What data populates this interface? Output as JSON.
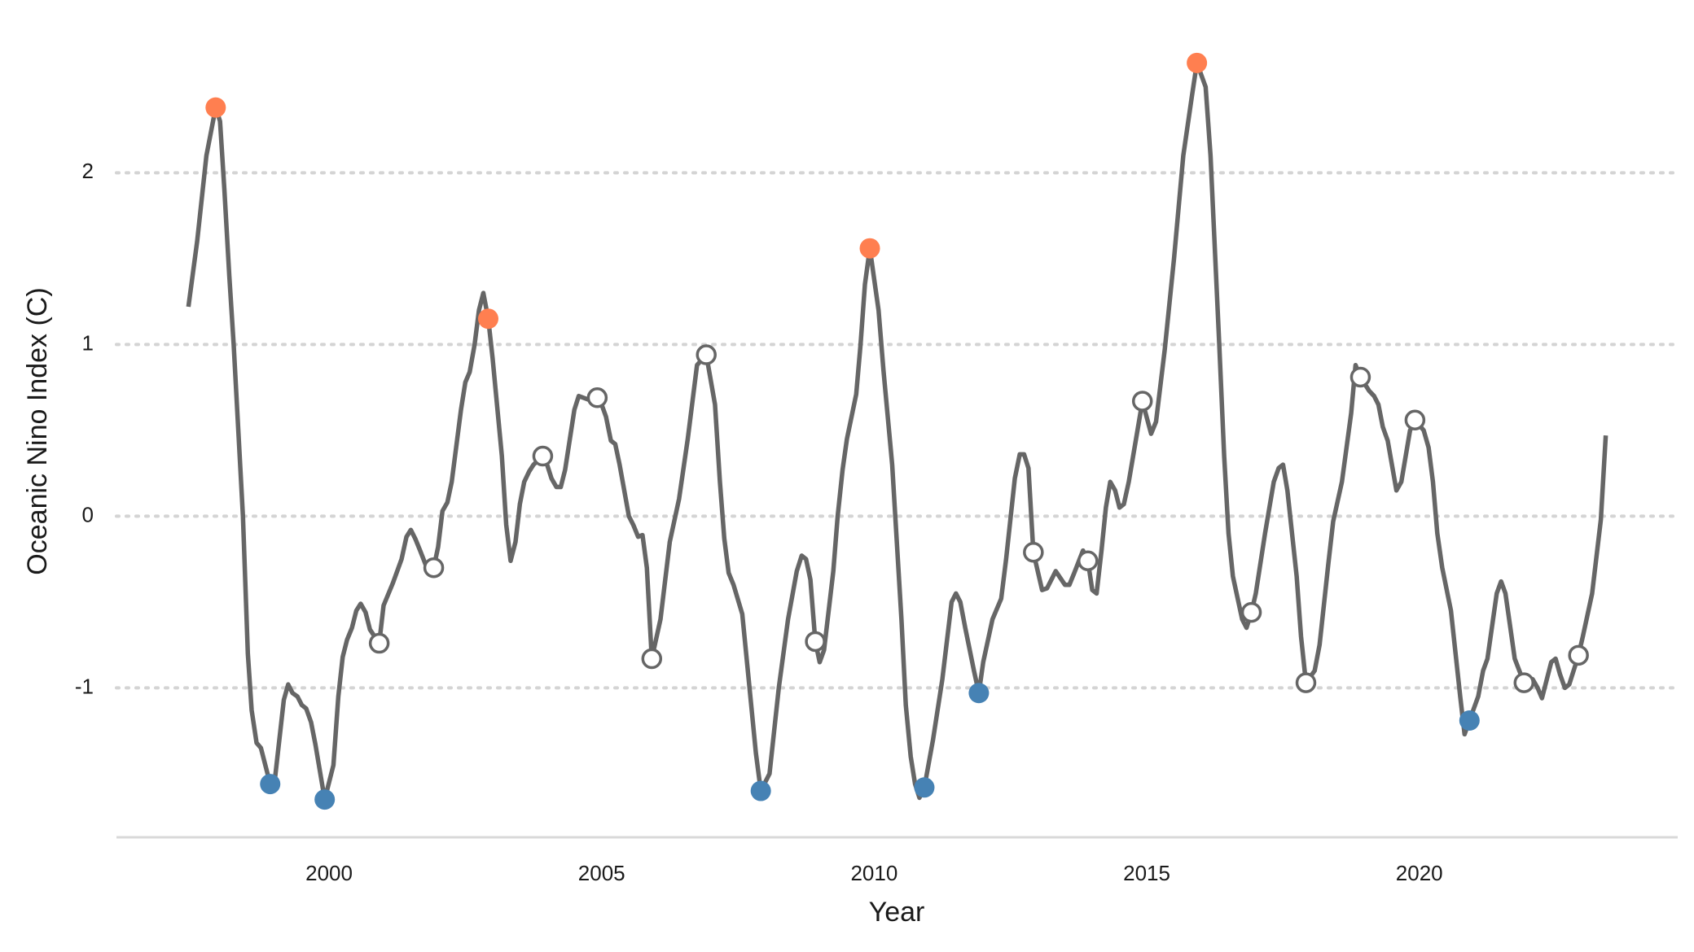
{
  "chart_data": {
    "type": "line",
    "x_label": "Year",
    "y_label": "Oceanic Nino Index (C)",
    "xlim": [
      1996.1,
      2024.74
    ],
    "ylim": [
      -1.87,
      2.85
    ],
    "xticks": [
      2000,
      2005,
      2010,
      2015,
      2020
    ],
    "yticks": [
      -1,
      0,
      1,
      2
    ],
    "grid": true,
    "color": "#666666",
    "x": [
      1997.42,
      1997.58,
      1997.75,
      1997.92,
      1998.0,
      1998.08,
      1998.17,
      1998.25,
      1998.42,
      1998.51,
      1998.58,
      1998.67,
      1998.75,
      1998.92,
      1999.0,
      1999.17,
      1999.25,
      1999.33,
      1999.42,
      1999.5,
      1999.58,
      1999.67,
      1999.75,
      1999.92,
      2000.08,
      2000.17,
      2000.25,
      2000.33,
      2000.42,
      2000.5,
      2000.58,
      2000.67,
      2000.75,
      2000.92,
      2001.0,
      2001.17,
      2001.33,
      2001.42,
      2001.5,
      2001.58,
      2001.67,
      2001.83,
      2001.92,
      2002.0,
      2002.08,
      2002.17,
      2002.25,
      2002.42,
      2002.5,
      2002.58,
      2002.67,
      2002.75,
      2002.83,
      2002.92,
      2003.0,
      2003.17,
      2003.25,
      2003.33,
      2003.42,
      2003.5,
      2003.58,
      2003.67,
      2003.75,
      2003.92,
      2004.0,
      2004.08,
      2004.17,
      2004.25,
      2004.33,
      2004.5,
      2004.58,
      2004.75,
      2004.92,
      2005.0,
      2005.08,
      2005.17,
      2005.25,
      2005.33,
      2005.5,
      2005.58,
      2005.67,
      2005.75,
      2005.83,
      2005.92,
      2006.08,
      2006.25,
      2006.42,
      2006.58,
      2006.75,
      2006.92,
      2007.08,
      2007.17,
      2007.25,
      2007.33,
      2007.42,
      2007.58,
      2007.75,
      2007.83,
      2007.92,
      2008.08,
      2008.25,
      2008.42,
      2008.58,
      2008.67,
      2008.75,
      2008.83,
      2008.92,
      2009.0,
      2009.08,
      2009.25,
      2009.33,
      2009.42,
      2009.5,
      2009.67,
      2009.75,
      2009.83,
      2009.92,
      2010.08,
      2010.17,
      2010.33,
      2010.5,
      2010.58,
      2010.67,
      2010.75,
      2010.83,
      2010.92,
      2011.08,
      2011.25,
      2011.42,
      2011.5,
      2011.58,
      2011.67,
      2011.83,
      2011.92,
      2012.0,
      2012.17,
      2012.33,
      2012.42,
      2012.58,
      2012.67,
      2012.75,
      2012.83,
      2012.92,
      2013.08,
      2013.17,
      2013.25,
      2013.33,
      2013.5,
      2013.58,
      2013.67,
      2013.83,
      2013.92,
      2014.0,
      2014.08,
      2014.17,
      2014.25,
      2014.33,
      2014.42,
      2014.5,
      2014.58,
      2014.67,
      2014.83,
      2014.92,
      2015.08,
      2015.17,
      2015.33,
      2015.5,
      2015.67,
      2015.83,
      2015.92,
      2016.08,
      2016.17,
      2016.33,
      2016.42,
      2016.5,
      2016.58,
      2016.75,
      2016.83,
      2016.92,
      2017.0,
      2017.17,
      2017.25,
      2017.33,
      2017.42,
      2017.5,
      2017.58,
      2017.75,
      2017.83,
      2017.92,
      2018.08,
      2018.17,
      2018.33,
      2018.42,
      2018.58,
      2018.75,
      2018.83,
      2018.92,
      2019.08,
      2019.17,
      2019.25,
      2019.33,
      2019.42,
      2019.58,
      2019.67,
      2019.83,
      2019.92,
      2020.08,
      2020.17,
      2020.25,
      2020.33,
      2020.42,
      2020.58,
      2020.75,
      2020.83,
      2020.92,
      2021.08,
      2021.17,
      2021.25,
      2021.42,
      2021.5,
      2021.58,
      2021.67,
      2021.75,
      2021.92,
      2022.08,
      2022.17,
      2022.25,
      2022.42,
      2022.5,
      2022.58,
      2022.67,
      2022.75,
      2022.92,
      2023.0,
      2023.17,
      2023.33,
      2023.42
    ],
    "values": [
      1.22,
      1.6,
      2.1,
      2.38,
      2.3,
      1.9,
      1.4,
      1.0,
      0.0,
      -0.8,
      -1.13,
      -1.32,
      -1.35,
      -1.56,
      -1.55,
      -1.07,
      -0.98,
      -1.03,
      -1.05,
      -1.1,
      -1.12,
      -1.2,
      -1.33,
      -1.65,
      -1.45,
      -1.05,
      -0.82,
      -0.72,
      -0.65,
      -0.55,
      -0.51,
      -0.56,
      -0.66,
      -0.74,
      -0.52,
      -0.39,
      -0.25,
      -0.12,
      -0.08,
      -0.13,
      -0.2,
      -0.33,
      -0.3,
      -0.18,
      0.03,
      0.08,
      0.2,
      0.62,
      0.78,
      0.84,
      1.0,
      1.2,
      1.3,
      1.15,
      0.92,
      0.35,
      -0.05,
      -0.26,
      -0.15,
      0.07,
      0.2,
      0.26,
      0.3,
      0.35,
      0.3,
      0.22,
      0.17,
      0.17,
      0.27,
      0.62,
      0.7,
      0.68,
      0.69,
      0.65,
      0.58,
      0.44,
      0.42,
      0.3,
      0.0,
      -0.05,
      -0.12,
      -0.11,
      -0.3,
      -0.83,
      -0.6,
      -0.15,
      0.1,
      0.45,
      0.88,
      0.94,
      0.65,
      0.2,
      -0.13,
      -0.33,
      -0.4,
      -0.57,
      -1.12,
      -1.38,
      -1.6,
      -1.5,
      -1.0,
      -0.6,
      -0.32,
      -0.23,
      -0.25,
      -0.37,
      -0.73,
      -0.85,
      -0.78,
      -0.32,
      0.0,
      0.27,
      0.45,
      0.71,
      1.0,
      1.35,
      1.56,
      1.2,
      0.85,
      0.3,
      -0.6,
      -1.1,
      -1.4,
      -1.56,
      -1.64,
      -1.58,
      -1.3,
      -0.95,
      -0.5,
      -0.45,
      -0.5,
      -0.65,
      -0.9,
      -1.03,
      -0.85,
      -0.6,
      -0.48,
      -0.25,
      0.22,
      0.36,
      0.36,
      0.28,
      -0.21,
      -0.43,
      -0.42,
      -0.37,
      -0.32,
      -0.4,
      -0.4,
      -0.33,
      -0.2,
      -0.26,
      -0.43,
      -0.45,
      -0.2,
      0.05,
      0.2,
      0.15,
      0.05,
      0.07,
      0.2,
      0.5,
      0.67,
      0.48,
      0.55,
      0.97,
      1.5,
      2.1,
      2.45,
      2.64,
      2.5,
      2.1,
      1.0,
      0.35,
      -0.1,
      -0.35,
      -0.6,
      -0.65,
      -0.56,
      -0.45,
      -0.1,
      0.05,
      0.2,
      0.28,
      0.3,
      0.15,
      -0.35,
      -0.7,
      -0.97,
      -0.9,
      -0.75,
      -0.28,
      -0.03,
      0.2,
      0.6,
      0.88,
      0.81,
      0.73,
      0.7,
      0.65,
      0.52,
      0.44,
      0.15,
      0.2,
      0.5,
      0.56,
      0.5,
      0.4,
      0.2,
      -0.1,
      -0.3,
      -0.55,
      -1.05,
      -1.27,
      -1.19,
      -1.05,
      -0.9,
      -0.83,
      -0.45,
      -0.38,
      -0.45,
      -0.65,
      -0.83,
      -0.97,
      -0.95,
      -1.0,
      -1.06,
      -0.85,
      -0.83,
      -0.92,
      -1.0,
      -0.98,
      -0.81,
      -0.7,
      -0.45,
      -0.02,
      0.47
    ],
    "points": {
      "x": [
        1997.92,
        1998.92,
        1999.92,
        2000.92,
        2001.92,
        2002.92,
        2003.92,
        2004.92,
        2005.92,
        2006.92,
        2007.92,
        2008.92,
        2009.92,
        2010.92,
        2011.92,
        2012.92,
        2013.92,
        2014.92,
        2015.92,
        2016.92,
        2017.92,
        2018.92,
        2019.92,
        2020.92,
        2021.92,
        2022.92
      ],
      "values": [
        2.38,
        -1.56,
        -1.65,
        -0.74,
        -0.3,
        1.15,
        0.35,
        0.69,
        -0.83,
        0.94,
        -1.6,
        -0.73,
        1.56,
        -1.58,
        -1.03,
        -0.21,
        -0.26,
        0.67,
        2.64,
        -0.56,
        -0.97,
        0.81,
        0.56,
        -1.19,
        -0.97,
        -0.81
      ],
      "colors": [
        "#ff7f50",
        "#4682b4",
        "#4682b4",
        "#ffffff",
        "#ffffff",
        "#ff7f50",
        "#ffffff",
        "#ffffff",
        "#ffffff",
        "#ffffff",
        "#4682b4",
        "#ffffff",
        "#ff7f50",
        "#4682b4",
        "#4682b4",
        "#ffffff",
        "#ffffff",
        "#ffffff",
        "#ff7f50",
        "#ffffff",
        "#ffffff",
        "#ffffff",
        "#ffffff",
        "#4682b4",
        "#ffffff",
        "#ffffff"
      ],
      "edge_color": "#666666"
    }
  }
}
